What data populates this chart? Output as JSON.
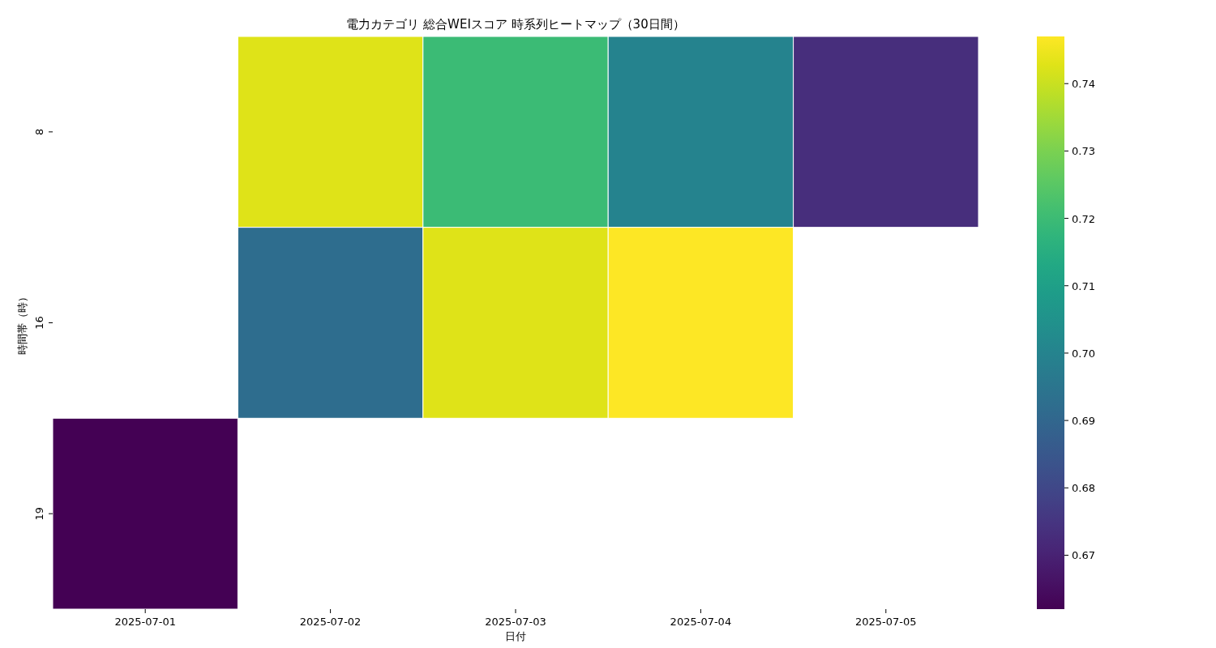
{
  "chart_data": {
    "type": "heatmap",
    "title": "電力カテゴリ 総合WEIスコア 時系列ヒートマップ（30日間）",
    "xlabel": "日付",
    "ylabel": "時間帯（時）",
    "categories": [
      "2025-07-01",
      "2025-07-02",
      "2025-07-03",
      "2025-07-04",
      "2025-07-05"
    ],
    "y_categories": [
      "8",
      "16",
      "19"
    ],
    "cells": [
      [
        null,
        0.743,
        0.72,
        0.7,
        0.673
      ],
      [
        null,
        0.692,
        0.743,
        0.747,
        null
      ],
      [
        0.662,
        null,
        null,
        null,
        null
      ]
    ],
    "clim": [
      0.662,
      0.747
    ],
    "cticks": [
      0.67,
      0.68,
      0.69,
      {
        "value": 0.7,
        "label": "0.70"
      },
      0.71,
      0.72,
      0.73,
      0.74
    ]
  }
}
